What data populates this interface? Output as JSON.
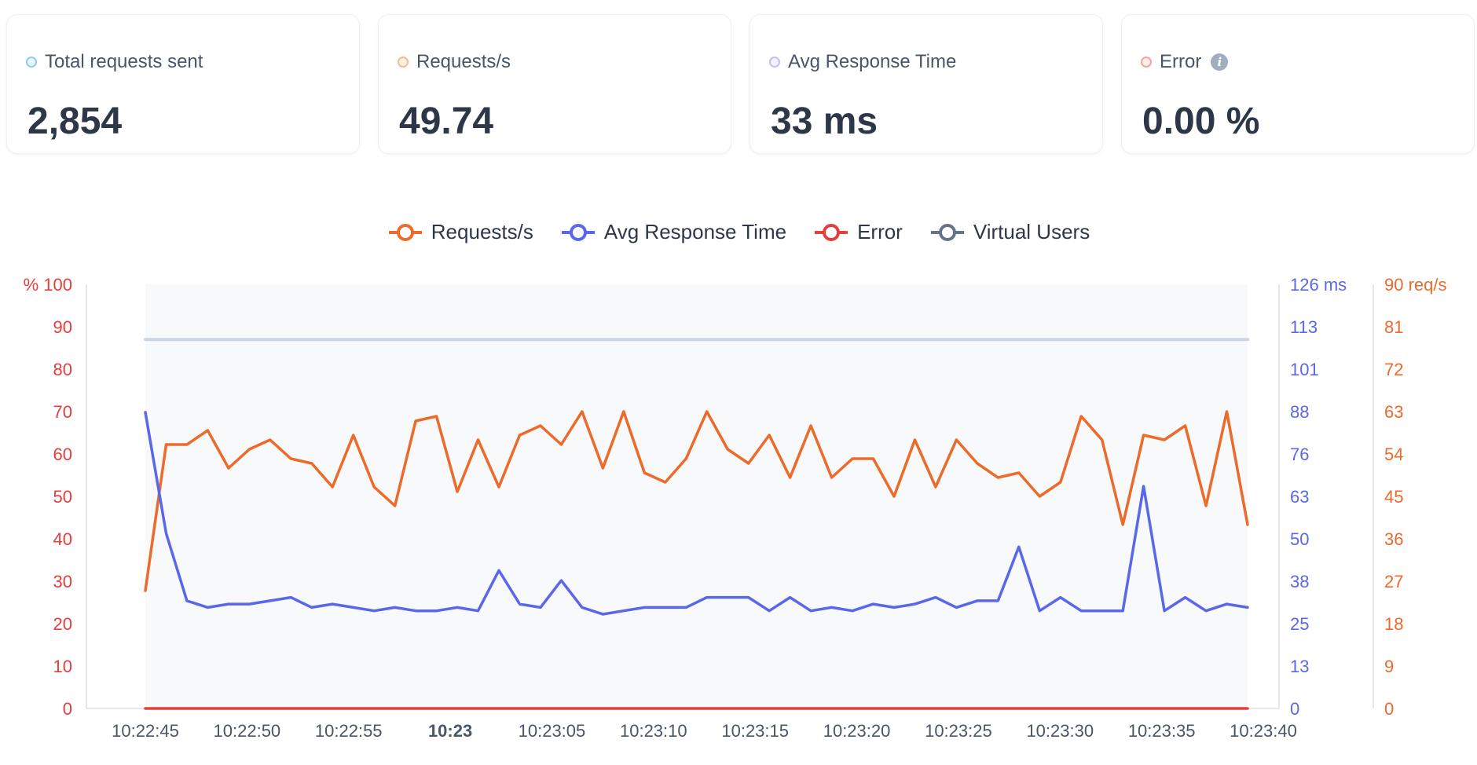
{
  "cards": [
    {
      "title": "Total requests sent",
      "value": "2,854",
      "dot_color": "#90cdf4",
      "info": false
    },
    {
      "title": "Requests/s",
      "value": "49.74",
      "dot_color": "#fbb88a",
      "info": false
    },
    {
      "title": "Avg Response Time",
      "value": "33 ms",
      "dot_color": "#c8bdf3",
      "info": false
    },
    {
      "title": "Error",
      "value": "0.00 %",
      "dot_color": "#f4a3a3",
      "info": true
    }
  ],
  "chart_data": {
    "type": "line",
    "legend": [
      {
        "name": "Requests/s",
        "color": "#ec6a2a"
      },
      {
        "name": "Avg Response Time",
        "color": "#5b67e9"
      },
      {
        "name": "Error",
        "color": "#e53e3e"
      },
      {
        "name": "Virtual Users",
        "color": "#64748b"
      }
    ],
    "x_ticks": [
      "10:22:45",
      "10:22:50",
      "10:22:55",
      "10:23",
      "10:23:05",
      "10:23:10",
      "10:23:15",
      "10:23:20",
      "10:23:25",
      "10:23:30",
      "10:23:35",
      "10:23:40"
    ],
    "x_tick_bold": "10:23",
    "left_axis": {
      "ticks": [
        "% 100",
        "90",
        "80",
        "70",
        "60",
        "50",
        "40",
        "30",
        "20",
        "10",
        "0"
      ],
      "range": [
        0,
        100
      ],
      "color": "#e53e3e"
    },
    "right_axis_ms": {
      "ticks": [
        "126 ms",
        "113",
        "101",
        "88",
        "76",
        "63",
        "50",
        "38",
        "25",
        "13",
        "0"
      ],
      "range": [
        0,
        126
      ],
      "color": "#5b67e9"
    },
    "right_axis_reqs": {
      "ticks": [
        "90 req/s",
        "81",
        "72",
        "63",
        "54",
        "45",
        "36",
        "27",
        "18",
        "9",
        "0"
      ],
      "range": [
        0,
        90
      ],
      "color": "#ec6a2a"
    },
    "series": [
      {
        "name": "Requests/s",
        "axis": "reqs",
        "color": "#ec6a2a",
        "values": [
          25,
          56,
          56,
          59,
          51,
          55,
          57,
          53,
          52,
          47,
          58,
          47,
          43,
          61,
          62,
          46,
          57,
          47,
          58,
          60,
          56,
          63,
          51,
          63,
          50,
          48,
          53,
          63,
          55,
          52,
          58,
          49,
          60,
          49,
          53,
          53,
          45,
          57,
          47,
          57,
          52,
          49,
          50,
          45,
          48,
          62,
          57,
          39,
          58,
          57,
          60,
          43,
          63,
          39
        ]
      },
      {
        "name": "Avg Response Time",
        "axis": "ms",
        "color": "#5b67e9",
        "values": [
          88,
          52,
          32,
          30,
          31,
          31,
          32,
          33,
          30,
          31,
          30,
          29,
          30,
          29,
          29,
          30,
          29,
          41,
          31,
          30,
          38,
          30,
          28,
          29,
          30,
          30,
          30,
          33,
          33,
          33,
          29,
          33,
          29,
          30,
          29,
          31,
          30,
          31,
          33,
          30,
          32,
          32,
          48,
          29,
          33,
          29,
          29,
          29,
          66,
          29,
          33,
          29,
          31,
          30
        ]
      },
      {
        "name": "Error",
        "axis": "pct",
        "color": "#e53e3e",
        "values": [
          0,
          0,
          0,
          0,
          0,
          0,
          0,
          0,
          0,
          0,
          0,
          0,
          0,
          0,
          0,
          0,
          0,
          0,
          0,
          0,
          0,
          0,
          0,
          0,
          0,
          0,
          0,
          0,
          0,
          0,
          0,
          0,
          0,
          0,
          0,
          0,
          0,
          0,
          0,
          0,
          0,
          0,
          0,
          0,
          0,
          0,
          0,
          0,
          0,
          0,
          0,
          0,
          0,
          0
        ]
      },
      {
        "name": "Virtual Users",
        "axis": "pct",
        "color": "#cbd5e0",
        "values": [
          87,
          87,
          87,
          87,
          87,
          87,
          87,
          87,
          87,
          87,
          87,
          87,
          87,
          87,
          87,
          87,
          87,
          87,
          87,
          87,
          87,
          87,
          87,
          87,
          87,
          87,
          87,
          87,
          87,
          87,
          87,
          87,
          87,
          87,
          87,
          87,
          87,
          87,
          87,
          87,
          87,
          87,
          87,
          87,
          87,
          87,
          87,
          87,
          87,
          87,
          87,
          87,
          87,
          87
        ]
      }
    ]
  }
}
